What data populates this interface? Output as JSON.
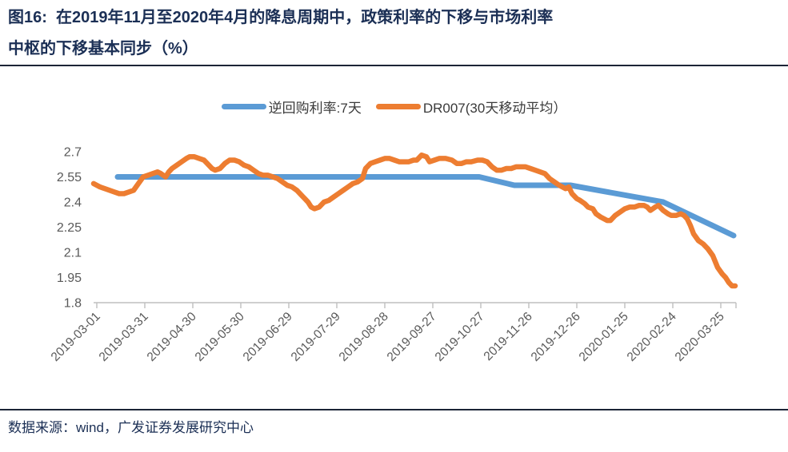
{
  "title": {
    "line1": "图16:  在2019年11月至2020年4月的降息周期中，政策利率的下移与市场利率",
    "line2": "中枢的下移基本同步（%）"
  },
  "source_note": "数据来源：wind，广发证券发展研究中心",
  "colors": {
    "policy_blue": "#5B9BD5",
    "dr007_orange": "#ED7D31",
    "axis_gray": "#BFBFBF",
    "tick_label_gray": "#595959",
    "title_navy": "#1b2f55"
  },
  "chart_data": {
    "type": "line",
    "title": "在2019年11月至2020年4月的降息周期中，政策利率的下移与市场利率中枢的下移基本同步",
    "unit": "%",
    "grid": false,
    "legend_position": "top",
    "x_axis": {
      "tick_labels": [
        "2019-03-01",
        "2019-03-31",
        "2019-04-30",
        "2019-05-30",
        "2019-06-29",
        "2019-07-29",
        "2019-08-28",
        "2019-09-27",
        "2019-10-27",
        "2019-11-26",
        "2019-12-26",
        "2020-01-25",
        "2020-02-24",
        "2020-03-25"
      ],
      "tick_interval_days": 30,
      "day_range": [
        -2,
        400
      ]
    },
    "y_axis": {
      "ticks": [
        1.8,
        1.95,
        2.1,
        2.25,
        2.4,
        2.55,
        2.7
      ],
      "ylim": [
        1.8,
        2.7
      ]
    },
    "series": [
      {
        "name": "逆回购利率:7天",
        "color": "#5B9BD5",
        "stroke_width": 7,
        "points": [
          [
            13,
            2.55
          ],
          [
            239,
            2.55
          ],
          [
            261,
            2.5
          ],
          [
            296,
            2.5
          ],
          [
            354,
            2.4
          ],
          [
            398,
            2.2
          ]
        ]
      },
      {
        "name": "DR007(30天移动平均）",
        "color": "#ED7D31",
        "stroke_width": 6.5,
        "points": [
          [
            -2,
            2.51
          ],
          [
            2,
            2.49
          ],
          [
            5,
            2.48
          ],
          [
            8,
            2.47
          ],
          [
            11,
            2.46
          ],
          [
            14,
            2.45
          ],
          [
            17,
            2.45
          ],
          [
            20,
            2.46
          ],
          [
            23,
            2.47
          ],
          [
            26,
            2.51
          ],
          [
            29,
            2.55
          ],
          [
            32,
            2.56
          ],
          [
            35,
            2.57
          ],
          [
            38,
            2.58
          ],
          [
            40,
            2.57
          ],
          [
            43,
            2.55
          ],
          [
            45,
            2.58
          ],
          [
            47,
            2.6
          ],
          [
            50,
            2.62
          ],
          [
            53,
            2.64
          ],
          [
            56,
            2.66
          ],
          [
            58,
            2.67
          ],
          [
            61,
            2.67
          ],
          [
            64,
            2.66
          ],
          [
            67,
            2.65
          ],
          [
            70,
            2.62
          ],
          [
            72,
            2.6
          ],
          [
            74,
            2.59
          ],
          [
            77,
            2.6
          ],
          [
            80,
            2.63
          ],
          [
            83,
            2.65
          ],
          [
            86,
            2.65
          ],
          [
            89,
            2.64
          ],
          [
            92,
            2.62
          ],
          [
            95,
            2.61
          ],
          [
            98,
            2.59
          ],
          [
            101,
            2.57
          ],
          [
            104,
            2.56
          ],
          [
            107,
            2.56
          ],
          [
            110,
            2.55
          ],
          [
            113,
            2.54
          ],
          [
            116,
            2.52
          ],
          [
            119,
            2.5
          ],
          [
            122,
            2.49
          ],
          [
            125,
            2.47
          ],
          [
            128,
            2.44
          ],
          [
            130,
            2.42
          ],
          [
            132,
            2.4
          ],
          [
            134,
            2.37
          ],
          [
            136,
            2.36
          ],
          [
            139,
            2.37
          ],
          [
            142,
            2.4
          ],
          [
            145,
            2.41
          ],
          [
            148,
            2.43
          ],
          [
            151,
            2.45
          ],
          [
            154,
            2.47
          ],
          [
            157,
            2.49
          ],
          [
            160,
            2.51
          ],
          [
            163,
            2.52
          ],
          [
            166,
            2.54
          ],
          [
            168,
            2.6
          ],
          [
            171,
            2.63
          ],
          [
            174,
            2.64
          ],
          [
            177,
            2.65
          ],
          [
            180,
            2.66
          ],
          [
            183,
            2.66
          ],
          [
            186,
            2.65
          ],
          [
            189,
            2.64
          ],
          [
            192,
            2.64
          ],
          [
            195,
            2.64
          ],
          [
            198,
            2.65
          ],
          [
            200,
            2.65
          ],
          [
            203,
            2.68
          ],
          [
            206,
            2.67
          ],
          [
            208,
            2.64
          ],
          [
            211,
            2.65
          ],
          [
            214,
            2.66
          ],
          [
            218,
            2.66
          ],
          [
            222,
            2.65
          ],
          [
            225,
            2.63
          ],
          [
            228,
            2.63
          ],
          [
            231,
            2.64
          ],
          [
            234,
            2.64
          ],
          [
            238,
            2.65
          ],
          [
            241,
            2.65
          ],
          [
            244,
            2.64
          ],
          [
            247,
            2.61
          ],
          [
            250,
            2.59
          ],
          [
            253,
            2.59
          ],
          [
            256,
            2.6
          ],
          [
            259,
            2.6
          ],
          [
            262,
            2.61
          ],
          [
            265,
            2.61
          ],
          [
            268,
            2.61
          ],
          [
            271,
            2.6
          ],
          [
            274,
            2.59
          ],
          [
            277,
            2.58
          ],
          [
            280,
            2.57
          ],
          [
            283,
            2.54
          ],
          [
            286,
            2.52
          ],
          [
            289,
            2.5
          ],
          [
            291,
            2.49
          ],
          [
            293,
            2.48
          ],
          [
            295,
            2.49
          ],
          [
            297,
            2.45
          ],
          [
            300,
            2.42
          ],
          [
            302,
            2.41
          ],
          [
            305,
            2.39
          ],
          [
            307,
            2.37
          ],
          [
            310,
            2.36
          ],
          [
            312,
            2.33
          ],
          [
            315,
            2.31
          ],
          [
            317,
            2.3
          ],
          [
            319,
            2.29
          ],
          [
            321,
            2.29
          ],
          [
            324,
            2.32
          ],
          [
            327,
            2.34
          ],
          [
            330,
            2.36
          ],
          [
            333,
            2.37
          ],
          [
            336,
            2.37
          ],
          [
            339,
            2.38
          ],
          [
            342,
            2.38
          ],
          [
            344,
            2.37
          ],
          [
            346,
            2.35
          ],
          [
            349,
            2.37
          ],
          [
            351,
            2.38
          ],
          [
            354,
            2.35
          ],
          [
            357,
            2.33
          ],
          [
            359,
            2.32
          ],
          [
            362,
            2.32
          ],
          [
            365,
            2.33
          ],
          [
            367,
            2.32
          ],
          [
            369,
            2.3
          ],
          [
            371,
            2.26
          ],
          [
            373,
            2.21
          ],
          [
            376,
            2.17
          ],
          [
            379,
            2.15
          ],
          [
            382,
            2.12
          ],
          [
            385,
            2.08
          ],
          [
            388,
            2.01
          ],
          [
            391,
            1.97
          ],
          [
            393,
            1.95
          ],
          [
            395,
            1.92
          ],
          [
            397,
            1.9
          ],
          [
            399,
            1.9
          ]
        ]
      }
    ]
  }
}
